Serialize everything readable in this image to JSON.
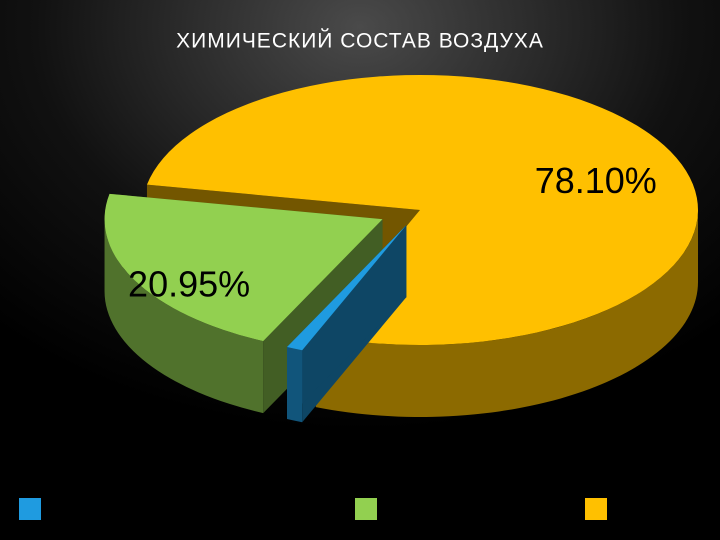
{
  "chart_data": {
    "type": "pie",
    "title": "ХИМИЧЕСКИЙ СОСТАВ ВОЗДУХА",
    "values": [
      0.95,
      20.95,
      78.1
    ],
    "value_labels": [
      null,
      "20.95%",
      "78.10%"
    ],
    "colors": [
      "#1f9be0",
      "#92d050",
      "#ffc000"
    ]
  }
}
